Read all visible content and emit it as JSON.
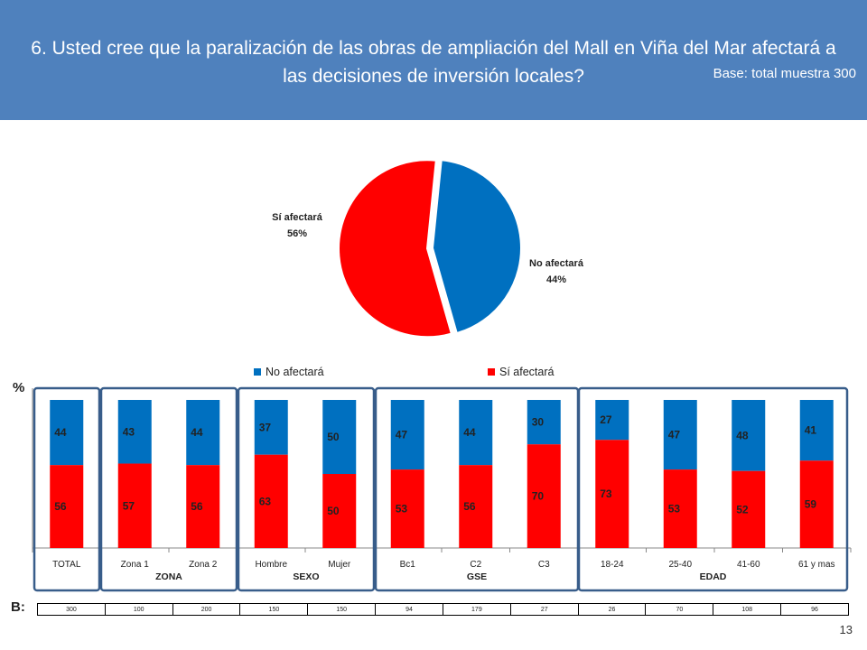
{
  "header": {
    "title_line1": "6. Usted cree que la paralización de las obras de ampliación del Mall en Viña del Mar afectará a",
    "title_line2": "las decisiones de inversión locales?",
    "base": "Base:  total muestra 300"
  },
  "colors": {
    "header_bg": "#4F81BD",
    "no_afectara": "#0070C0",
    "si_afectara": "#FF0000",
    "group_box": "#385D8A"
  },
  "chart_data": [
    {
      "type": "pie",
      "slices": [
        {
          "label": "No afectará",
          "pct_text": "44%",
          "value": 44,
          "color": "#0070C0"
        },
        {
          "label": "Sí afectará",
          "pct_text": "56%",
          "value": 56,
          "color": "#FF0000"
        }
      ]
    },
    {
      "type": "bar",
      "stacked": true,
      "percent": true,
      "ylabel": "%",
      "legend_placement": "top",
      "categories": [
        "TOTAL",
        "Zona 1",
        "Zona 2",
        "Hombre",
        "Mujer",
        "Bc1",
        "C2",
        "C3",
        "18-24",
        "25-40",
        "41-60",
        "61 y mas"
      ],
      "groups": [
        {
          "name": "ZONA"
        },
        {
          "name": "SEXO"
        },
        {
          "name": "GSE"
        },
        {
          "name": "EDAD"
        }
      ],
      "series": [
        {
          "name": "No afectará",
          "color": "#0070C0",
          "values": [
            44,
            43,
            44,
            37,
            50,
            47,
            44,
            30,
            27,
            47,
            48,
            41
          ]
        },
        {
          "name": "Sí afectará",
          "color": "#FF0000",
          "values": [
            56,
            57,
            56,
            63,
            50,
            53,
            56,
            70,
            73,
            53,
            52,
            59
          ]
        }
      ]
    }
  ],
  "base_row": {
    "label": "B:",
    "values": [
      "300",
      "100",
      "200",
      "150",
      "150",
      "94",
      "179",
      "27",
      "26",
      "70",
      "108",
      "96"
    ]
  },
  "page_number": "13"
}
